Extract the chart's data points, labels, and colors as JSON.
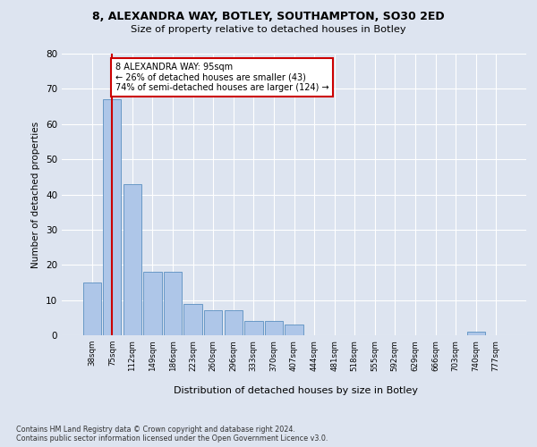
{
  "title1": "8, ALEXANDRA WAY, BOTLEY, SOUTHAMPTON, SO30 2ED",
  "title2": "Size of property relative to detached houses in Botley",
  "xlabel": "Distribution of detached houses by size in Botley",
  "ylabel": "Number of detached properties",
  "categories": [
    "38sqm",
    "75sqm",
    "112sqm",
    "149sqm",
    "186sqm",
    "223sqm",
    "260sqm",
    "296sqm",
    "333sqm",
    "370sqm",
    "407sqm",
    "444sqm",
    "481sqm",
    "518sqm",
    "555sqm",
    "592sqm",
    "629sqm",
    "666sqm",
    "703sqm",
    "740sqm",
    "777sqm"
  ],
  "values": [
    15,
    67,
    43,
    18,
    18,
    9,
    7,
    7,
    4,
    4,
    3,
    0,
    0,
    0,
    0,
    0,
    0,
    0,
    0,
    1,
    0
  ],
  "bar_color": "#aec6e8",
  "bar_edge_color": "#5a8fc0",
  "vline_x": 1.0,
  "vline_color": "#cc0000",
  "annotation_text": "8 ALEXANDRA WAY: 95sqm\n← 26% of detached houses are smaller (43)\n74% of semi-detached houses are larger (124) →",
  "annotation_box_color": "#ffffff",
  "annotation_box_edge": "#cc0000",
  "ylim": [
    0,
    80
  ],
  "yticks": [
    0,
    10,
    20,
    30,
    40,
    50,
    60,
    70,
    80
  ],
  "footer": "Contains HM Land Registry data © Crown copyright and database right 2024.\nContains public sector information licensed under the Open Government Licence v3.0.",
  "bg_color": "#dde4f0",
  "plot_bg_color": "#dde4f0"
}
